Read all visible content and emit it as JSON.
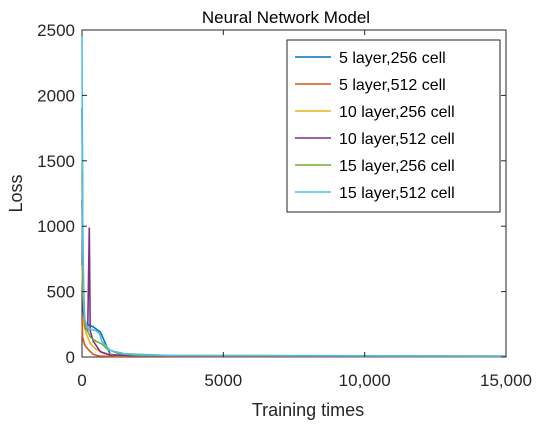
{
  "chart_data": {
    "type": "line",
    "title": "Neural Network Model",
    "xlabel": "Training times",
    "ylabel": "Loss",
    "xlim": [
      0,
      15000
    ],
    "ylim": [
      0,
      2500
    ],
    "x_ticks": [
      0,
      5000,
      10000,
      15000
    ],
    "x_tick_labels": [
      "0",
      "5000",
      "10,000",
      "15,000"
    ],
    "y_ticks": [
      0,
      500,
      1000,
      1500,
      2000,
      2500
    ],
    "y_tick_labels": [
      "0",
      "500",
      "1000",
      "1500",
      "2000",
      "2500"
    ],
    "grid": false,
    "legend_position": "top-right",
    "series": [
      {
        "name": "5 layer,256 cell",
        "color": "#0072BD",
        "points": [
          [
            0,
            1900
          ],
          [
            40,
            600
          ],
          [
            100,
            260
          ],
          [
            400,
            230
          ],
          [
            650,
            190
          ],
          [
            1000,
            20
          ],
          [
            1500,
            10
          ],
          [
            3000,
            6
          ],
          [
            15000,
            4
          ]
        ]
      },
      {
        "name": "5 layer,512 cell",
        "color": "#D95319",
        "points": [
          [
            0,
            300
          ],
          [
            20,
            150
          ],
          [
            100,
            90
          ],
          [
            250,
            50
          ],
          [
            400,
            20
          ],
          [
            600,
            8
          ],
          [
            1000,
            5
          ],
          [
            15000,
            3
          ]
        ]
      },
      {
        "name": "10 layer,256 cell",
        "color": "#EDB120",
        "points": [
          [
            0,
            700
          ],
          [
            60,
            250
          ],
          [
            150,
            180
          ],
          [
            300,
            100
          ],
          [
            500,
            60
          ],
          [
            800,
            25
          ],
          [
            1200,
            12
          ],
          [
            2000,
            8
          ],
          [
            15000,
            5
          ]
        ]
      },
      {
        "name": "10 layer,512 cell",
        "color": "#7E2F8E",
        "points": [
          [
            0,
            1200
          ],
          [
            50,
            350
          ],
          [
            120,
            220
          ],
          [
            200,
            200
          ],
          [
            260,
            990
          ],
          [
            290,
            200
          ],
          [
            400,
            120
          ],
          [
            650,
            40
          ],
          [
            1000,
            15
          ],
          [
            2000,
            8
          ],
          [
            15000,
            5
          ]
        ]
      },
      {
        "name": "15 layer,256 cell",
        "color": "#77AC30",
        "points": [
          [
            0,
            1400
          ],
          [
            40,
            500
          ],
          [
            100,
            240
          ],
          [
            300,
            150
          ],
          [
            500,
            120
          ],
          [
            700,
            100
          ],
          [
            900,
            60
          ],
          [
            1300,
            25
          ],
          [
            2000,
            12
          ],
          [
            15000,
            6
          ]
        ]
      },
      {
        "name": "15 layer,512 cell",
        "color": "#4DBEEE",
        "points": [
          [
            0,
            2450
          ],
          [
            30,
            900
          ],
          [
            80,
            300
          ],
          [
            200,
            220
          ],
          [
            500,
            200
          ],
          [
            620,
            180
          ],
          [
            700,
            120
          ],
          [
            1000,
            50
          ],
          [
            1500,
            25
          ],
          [
            3000,
            12
          ],
          [
            15000,
            8
          ]
        ]
      }
    ]
  }
}
